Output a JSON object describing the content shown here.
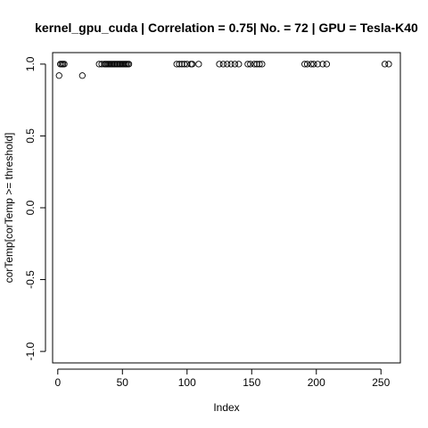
{
  "chart_data": {
    "type": "scatter",
    "title": "kernel_gpu_cuda | Correlation = 0.75| No. = 72 | GPU = Tesla-K40",
    "xlabel": "Index",
    "ylabel": "corTemp[corTemp >= threshold]",
    "xlim": [
      -4,
      265
    ],
    "ylim": [
      -1.08,
      1.08
    ],
    "x_ticks": [
      0,
      50,
      100,
      150,
      200,
      250
    ],
    "x_tick_labels": [
      "0",
      "50",
      "100",
      "150",
      "200",
      "250"
    ],
    "y_ticks": [
      -1.0,
      -0.5,
      0.0,
      0.5,
      1.0
    ],
    "y_tick_labels": [
      "-1.0",
      "-0.5",
      "0.0",
      "0.5",
      "1.0"
    ],
    "grid": false,
    "series": [
      {
        "x": [
          1,
          2,
          3,
          4,
          5,
          19,
          32,
          34,
          36,
          37,
          38,
          39,
          40,
          41,
          42,
          43,
          44,
          45,
          46,
          47,
          48,
          49,
          50,
          51,
          52,
          53,
          54,
          55,
          92,
          94,
          96,
          98,
          100,
          103,
          104,
          109,
          125,
          128,
          131,
          134,
          137,
          140,
          147,
          149,
          152,
          154,
          156,
          158,
          191,
          193,
          196,
          198,
          201,
          205,
          208,
          253,
          256
        ],
        "y": [
          0.92,
          1.0,
          1.0,
          1.0,
          1.0,
          0.92,
          1.0,
          1.0,
          1.0,
          1.0,
          1.0,
          1.0,
          1.0,
          1.0,
          1.0,
          1.0,
          1.0,
          1.0,
          1.0,
          1.0,
          1.0,
          1.0,
          1.0,
          1.0,
          1.0,
          1.0,
          1.0,
          1.0,
          1.0,
          1.0,
          1.0,
          1.0,
          1.0,
          1.0,
          1.0,
          1.0,
          1.0,
          1.0,
          1.0,
          1.0,
          1.0,
          1.0,
          1.0,
          1.0,
          1.0,
          1.0,
          1.0,
          1.0,
          1.0,
          1.0,
          1.0,
          1.0,
          1.0,
          1.0,
          1.0,
          1.0,
          1.0
        ]
      }
    ]
  }
}
